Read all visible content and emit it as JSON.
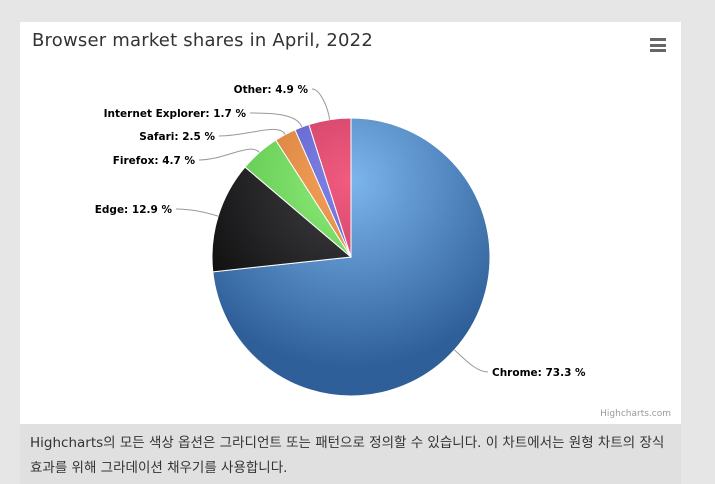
{
  "colors": {
    "page_background": "#e6e6e6",
    "chart_background": "#ffffff",
    "caption_background": "#e0e0e0"
  },
  "menu": {
    "icon": "hamburger-menu-icon"
  },
  "credits": {
    "text": "Highcharts.com"
  },
  "caption": {
    "text": "Highcharts의 모든 색상 옵션은 그라디언트 또는 패턴으로 정의할 수 있습니다. 이 차트에서는 원형 차트의 장식 효과를 위해 그라데이션 채우기를 사용합니다."
  },
  "chart_data": {
    "type": "pie",
    "title": "Browser market shares in April, 2022",
    "legend": "none",
    "slices": [
      {
        "name": "Chrome",
        "value": 73.3,
        "label": "Chrome: 73.3 %",
        "color": "#4572c4",
        "light": "#7cb5ec",
        "dark": "#2f5f98"
      },
      {
        "name": "Edge",
        "value": 12.9,
        "label": "Edge: 12.9 %",
        "color": "#1c1c1c",
        "light": "#434348",
        "dark": "#0a0a0a"
      },
      {
        "name": "Firefox",
        "value": 4.7,
        "label": "Firefox: 4.7 %",
        "color": "#6ad45a",
        "light": "#90ed7d",
        "dark": "#4cb83a"
      },
      {
        "name": "Safari",
        "value": 2.5,
        "label": "Safari: 2.5 %",
        "color": "#e08a3a",
        "light": "#f7a35c",
        "dark": "#c0692a"
      },
      {
        "name": "Internet Explorer",
        "value": 1.7,
        "label": "Internet Explorer: 1.7 %",
        "color": "#6b67d6",
        "light": "#8085e9",
        "dark": "#4a47b0"
      },
      {
        "name": "Other",
        "value": 4.9,
        "label": "Other: 4.9 %",
        "color": "#d9436e",
        "light": "#f15c80",
        "dark": "#b0294f"
      }
    ]
  }
}
